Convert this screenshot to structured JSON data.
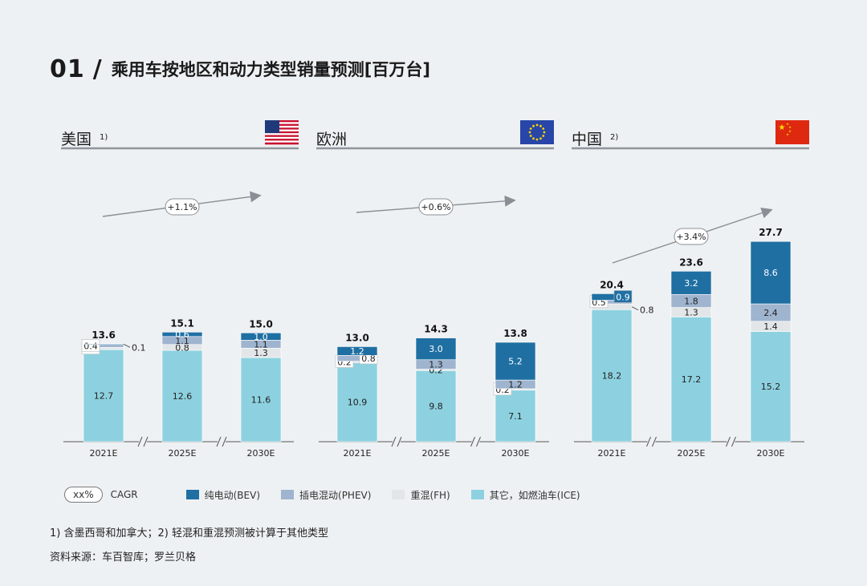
{
  "header": {
    "number": "01",
    "slash": "/",
    "title": "乘用车按地区和动力类型销量预测[百万台]"
  },
  "colors": {
    "BEV": "#1f6fa3",
    "PHEV": "#9fb4cf",
    "FH": "#e3e6e9",
    "ICE": "#8dd1e0"
  },
  "legend": {
    "cagr_pill": "xx%",
    "cagr_label": "CAGR",
    "items": [
      {
        "key": "BEV",
        "label": "纯电动(BEV)"
      },
      {
        "key": "PHEV",
        "label": "插电混动(PHEV)"
      },
      {
        "key": "FH",
        "label": "重混(FH)"
      },
      {
        "key": "ICE",
        "label": "其它，如燃油车(ICE)"
      }
    ]
  },
  "footnotes": {
    "note": "1) 含墨西哥和加拿大；2) 轻混和重混预测被计算于其他类型",
    "source": "资料来源：车百智库；罗兰贝格"
  },
  "chart_data": [
    {
      "type": "stacked-bar",
      "title": "美国",
      "title_sup": "1)",
      "flag": "us-flag",
      "cagr": "+1.1%",
      "categories": [
        "2021E",
        "2025E",
        "2030E"
      ],
      "totals": [
        "13.6",
        "15.1",
        "15.0"
      ],
      "series": [
        {
          "name": "ICE",
          "values": [
            12.7,
            12.6,
            11.6
          ]
        },
        {
          "name": "FH",
          "values": [
            0.3,
            0.8,
            1.3
          ]
        },
        {
          "name": "PHEV",
          "values": [
            0.4,
            1.1,
            1.1
          ]
        },
        {
          "name": "BEV",
          "values": [
            0.1,
            0.6,
            1.0
          ]
        }
      ]
    },
    {
      "type": "stacked-bar",
      "title": "欧洲",
      "title_sup": "",
      "flag": "eu-flag",
      "cagr": "+0.6%",
      "categories": [
        "2021E",
        "2025E",
        "2030E"
      ],
      "totals": [
        "13.0",
        "14.3",
        "13.8"
      ],
      "series": [
        {
          "name": "ICE",
          "values": [
            10.9,
            9.8,
            7.1
          ]
        },
        {
          "name": "FH",
          "values": [
            0.2,
            0.2,
            0.2
          ]
        },
        {
          "name": "PHEV",
          "values": [
            0.8,
            1.3,
            1.2
          ]
        },
        {
          "name": "BEV",
          "values": [
            1.2,
            3.0,
            5.2
          ]
        }
      ]
    },
    {
      "type": "stacked-bar",
      "title": "中国",
      "title_sup": "2)",
      "flag": "cn-flag",
      "cagr": "+3.4%",
      "categories": [
        "2021E",
        "2025E",
        "2030E"
      ],
      "totals": [
        "20.4",
        "23.6",
        "27.7"
      ],
      "series": [
        {
          "name": "ICE",
          "values": [
            18.2,
            17.2,
            15.2
          ]
        },
        {
          "name": "FH",
          "values": [
            0.8,
            1.3,
            1.4
          ]
        },
        {
          "name": "PHEV",
          "values": [
            0.5,
            1.8,
            2.4
          ]
        },
        {
          "name": "BEV",
          "values": [
            0.9,
            3.2,
            8.6
          ]
        }
      ],
      "y_unit": "million units"
    }
  ]
}
